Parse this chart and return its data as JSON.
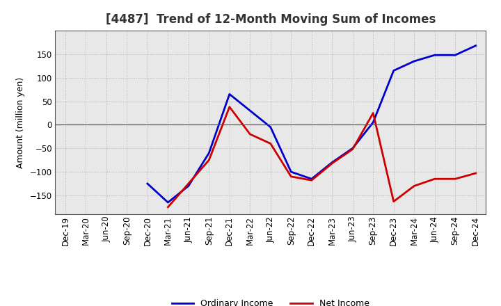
{
  "title": "[4487]  Trend of 12-Month Moving Sum of Incomes",
  "ylabel": "Amount (million yen)",
  "background_color": "#ffffff",
  "grid_color": "#aaaaaa",
  "plot_bg_color": "#e8e8e8",
  "x_labels": [
    "Dec-19",
    "Mar-20",
    "Jun-20",
    "Sep-20",
    "Dec-20",
    "Mar-21",
    "Jun-21",
    "Sep-21",
    "Dec-21",
    "Mar-22",
    "Jun-22",
    "Sep-22",
    "Dec-22",
    "Mar-23",
    "Jun-23",
    "Sep-23",
    "Dec-23",
    "Mar-24",
    "Jun-24",
    "Sep-24",
    "Dec-24"
  ],
  "ordinary_income": [
    null,
    null,
    null,
    null,
    -125,
    -165,
    -130,
    -60,
    65,
    30,
    -5,
    -100,
    -115,
    -80,
    -50,
    5,
    115,
    135,
    148,
    148,
    168
  ],
  "net_income": [
    null,
    null,
    null,
    null,
    null,
    -175,
    -125,
    -75,
    38,
    -20,
    -40,
    -110,
    -118,
    -82,
    -52,
    25,
    -163,
    -130,
    -115,
    -115,
    -103
  ],
  "ylim": [
    -190,
    200
  ],
  "yticks": [
    -150,
    -100,
    -50,
    0,
    50,
    100,
    150
  ],
  "ordinary_color": "#0000cc",
  "net_color": "#cc0000",
  "line_width": 2.0,
  "title_color": "#333333",
  "title_fontsize": 12,
  "ylabel_fontsize": 9,
  "tick_fontsize": 8.5,
  "legend_fontsize": 9
}
